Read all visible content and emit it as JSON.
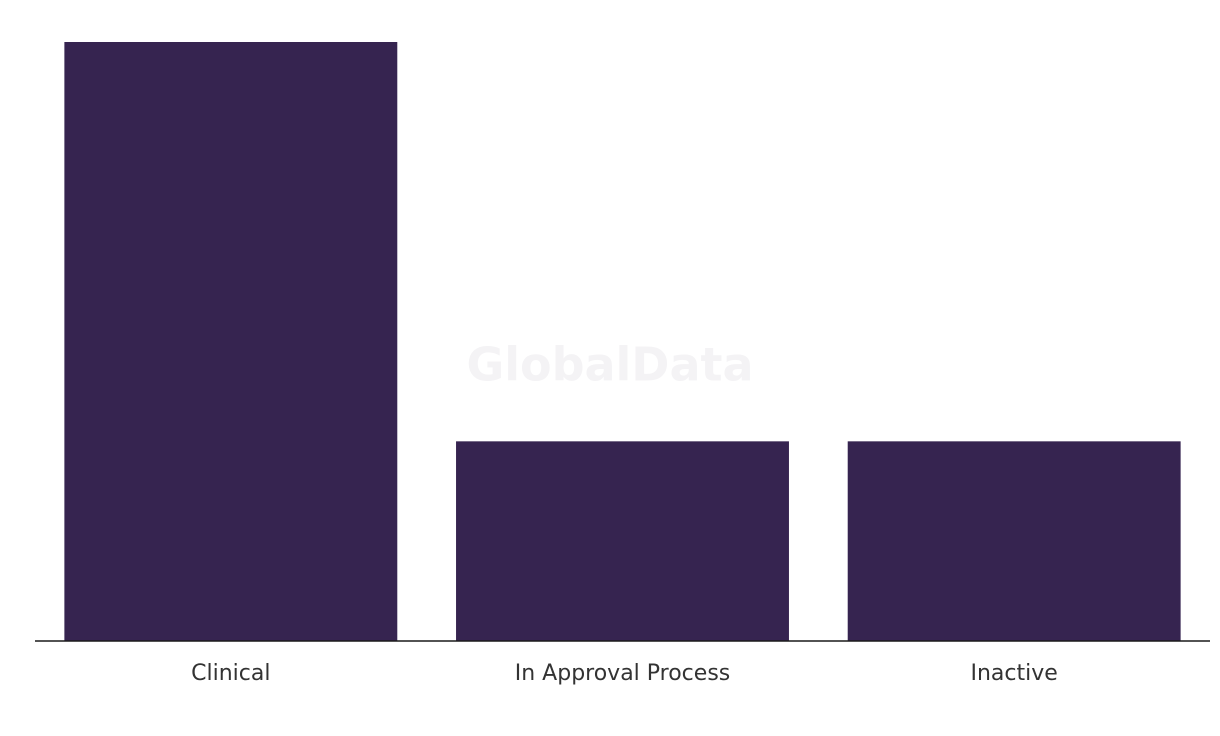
{
  "chart_data": {
    "type": "bar",
    "watermark": "GlobalData",
    "categories": [
      "Clinical",
      "In Approval Process",
      "Inactive"
    ],
    "values": [
      3,
      1,
      1
    ],
    "color": "#362450",
    "ylim": [
      0,
      3
    ]
  }
}
